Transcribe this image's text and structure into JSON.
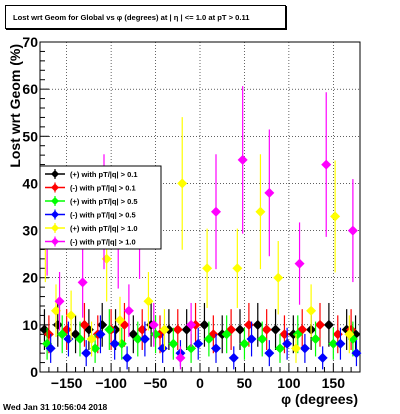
{
  "page": {
    "title": "Lost wrt Geom for Global vs φ (degrees) at | η | <= 1.0 at pT > 0.11",
    "footer": "Wed Jan 31 10:56:04 2018"
  },
  "chart_data": {
    "type": "scatter",
    "title": "Lost wrt Geom for Global vs φ (degrees) at | η | <= 1.0 at pT > 0.11",
    "xlabel": "φ (degrees)",
    "ylabel": "Lost wrt Geom (%)",
    "xlim": [
      -180,
      180
    ],
    "ylim": [
      0,
      70
    ],
    "x_ticks": [
      -150,
      -100,
      -50,
      0,
      50,
      100,
      150
    ],
    "y_ticks": [
      0,
      10,
      20,
      30,
      40,
      50,
      60,
      70
    ],
    "grid": true,
    "legend_position": "left-middle",
    "series": [
      {
        "name": "(+) with pT/|q| > 0.1",
        "color": "#000000",
        "x": [
          -175,
          -160,
          -140,
          -125,
          -110,
          -95,
          -75,
          -55,
          -35,
          -15,
          5,
          25,
          45,
          65,
          85,
          105,
          125,
          145,
          165,
          175
        ],
        "y": [
          9,
          10,
          8,
          9,
          10,
          9,
          8,
          10,
          9,
          9,
          10,
          8,
          9,
          10,
          9,
          8,
          9,
          10,
          9,
          8
        ]
      },
      {
        "name": "(-) with pT/|q| > 0.1",
        "color": "#ff0000",
        "x": [
          -170,
          -150,
          -130,
          -115,
          -100,
          -85,
          -65,
          -45,
          -25,
          -5,
          15,
          35,
          55,
          75,
          95,
          115,
          135,
          155,
          170
        ],
        "y": [
          8,
          9,
          10,
          8,
          9,
          10,
          9,
          8,
          9,
          10,
          8,
          9,
          10,
          9,
          8,
          9,
          10,
          8,
          9
        ]
      },
      {
        "name": "(+) with pT/|q| > 0.5",
        "color": "#00ff00",
        "x": [
          -172,
          -155,
          -135,
          -118,
          -102,
          -88,
          -70,
          -50,
          -30,
          -10,
          10,
          30,
          50,
          70,
          90,
          110,
          130,
          150,
          172
        ],
        "y": [
          6,
          8,
          7,
          5,
          9,
          6,
          7,
          8,
          6,
          5,
          7,
          8,
          6,
          7,
          5,
          8,
          7,
          6,
          7
        ]
      },
      {
        "name": "(-) with pT/|q| > 0.5",
        "color": "#0000ff",
        "x": [
          -168,
          -148,
          -128,
          -112,
          -96,
          -82,
          -62,
          -42,
          -22,
          -2,
          18,
          38,
          58,
          78,
          98,
          118,
          138,
          158,
          176
        ],
        "y": [
          5,
          7,
          4,
          8,
          6,
          3,
          7,
          5,
          4,
          6,
          5,
          3,
          7,
          4,
          6,
          5,
          3,
          6,
          4
        ]
      },
      {
        "name": "(+) with pT/|q| > 1.0",
        "color": "#ffff00",
        "x": [
          -174,
          -162,
          -145,
          -122,
          -105,
          -90,
          -58,
          -40,
          -20,
          8,
          42,
          68,
          88,
          108,
          125,
          152,
          168
        ],
        "y": [
          30,
          13,
          12,
          7,
          24,
          11,
          15,
          9,
          40,
          22,
          22,
          34,
          20,
          5,
          13,
          33,
          8
        ]
      },
      {
        "name": "(-) with pT/|q| > 1.0",
        "color": "#ff00ff",
        "x": [
          -172,
          -158,
          -132,
          -108,
          -92,
          -80,
          -68,
          -52,
          -22,
          -10,
          18,
          48,
          78,
          112,
          142,
          172
        ],
        "y": [
          32,
          15,
          19,
          34,
          28,
          13,
          31,
          10,
          3,
          10,
          34,
          45,
          38,
          23,
          44,
          30
        ]
      }
    ]
  }
}
